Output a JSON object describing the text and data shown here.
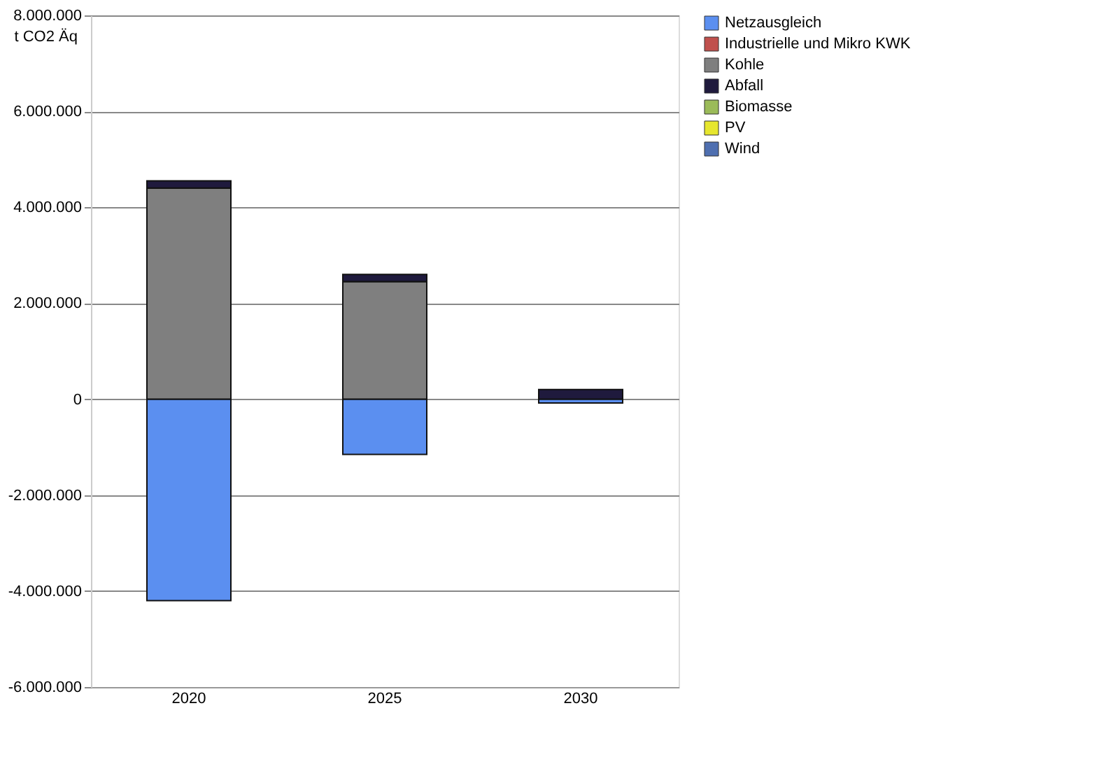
{
  "chart_data": {
    "type": "bar",
    "stacked": true,
    "ylabel": "t CO2 Äq",
    "categories": [
      "2020",
      "2025",
      "2030"
    ],
    "series": [
      {
        "name": "Netzausgleich",
        "color": "#5b8ff0",
        "values": [
          -4200000,
          -1150000,
          -80000
        ]
      },
      {
        "name": "Industrielle und Mikro KWK",
        "color": "#c0504d",
        "values": [
          0,
          0,
          0
        ]
      },
      {
        "name": "Kohle",
        "color": "#7f7f7f",
        "values": [
          4400000,
          2450000,
          0
        ]
      },
      {
        "name": "Abfall",
        "color": "#1f1a3d",
        "values": [
          150000,
          150000,
          200000
        ]
      },
      {
        "name": "Biomasse",
        "color": "#9bbb59",
        "values": [
          0,
          0,
          0
        ]
      },
      {
        "name": "PV",
        "color": "#e6e62e",
        "values": [
          0,
          0,
          0
        ]
      },
      {
        "name": "Wind",
        "color": "#4f6fb0",
        "values": [
          0,
          0,
          0
        ]
      }
    ],
    "ylim": [
      -6000000,
      8000000
    ],
    "yticks": [
      {
        "value": -6000000,
        "label": "-6.000.000"
      },
      {
        "value": -4000000,
        "label": "-4.000.000"
      },
      {
        "value": -2000000,
        "label": "-2.000.000"
      },
      0,
      {
        "value": 2000000,
        "label": "2.000.000"
      },
      {
        "value": 4000000,
        "label": "4.000.000"
      },
      {
        "value": 6000000,
        "label": "6.000.000"
      },
      {
        "value": 8000000,
        "label": "8.000.000"
      }
    ],
    "grid": "y",
    "legend": "right"
  }
}
